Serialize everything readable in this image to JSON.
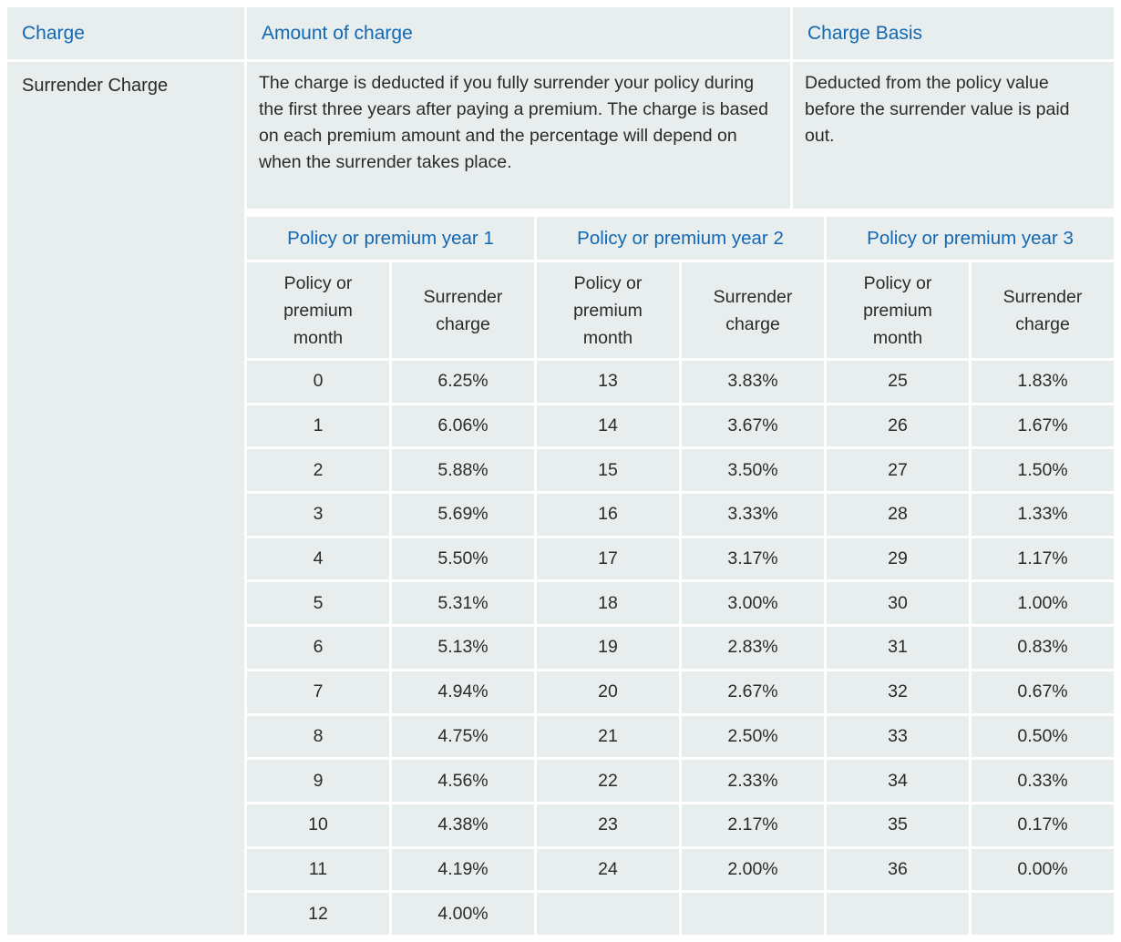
{
  "colors": {
    "accent_blue": "#1268b3",
    "cell_background": "#e8edee",
    "text": "#2b2b2b",
    "page_background": "#ffffff"
  },
  "table": {
    "column_headers": {
      "charge": "Charge",
      "amount": "Amount of charge",
      "basis": "Charge Basis"
    },
    "surrender_row": {
      "name": "Surrender Charge",
      "amount_description": "The charge is deducted if you fully surrender your policy during the first three years after paying a premium. The charge is based on each premium amount and the percentage will depend on when the surrender takes place.",
      "charge_basis": "Deducted from the policy value before the surrender value is paid out."
    },
    "schedule": {
      "year_headers": [
        "Policy or premium year 1",
        "Policy or premium year 2",
        "Policy or premium year 3"
      ],
      "column_headers": [
        "Policy or premium month",
        "Surrender charge",
        "Policy or premium month",
        "Surrender charge",
        "Policy or premium month",
        "Surrender charge"
      ],
      "rows": [
        [
          "0",
          "6.25%",
          "13",
          "3.83%",
          "25",
          "1.83%"
        ],
        [
          "1",
          "6.06%",
          "14",
          "3.67%",
          "26",
          "1.67%"
        ],
        [
          "2",
          "5.88%",
          "15",
          "3.50%",
          "27",
          "1.50%"
        ],
        [
          "3",
          "5.69%",
          "16",
          "3.33%",
          "28",
          "1.33%"
        ],
        [
          "4",
          "5.50%",
          "17",
          "3.17%",
          "29",
          "1.17%"
        ],
        [
          "5",
          "5.31%",
          "18",
          "3.00%",
          "30",
          "1.00%"
        ],
        [
          "6",
          "5.13%",
          "19",
          "2.83%",
          "31",
          "0.83%"
        ],
        [
          "7",
          "4.94%",
          "20",
          "2.67%",
          "32",
          "0.67%"
        ],
        [
          "8",
          "4.75%",
          "21",
          "2.50%",
          "33",
          "0.50%"
        ],
        [
          "9",
          "4.56%",
          "22",
          "2.33%",
          "34",
          "0.33%"
        ],
        [
          "10",
          "4.38%",
          "23",
          "2.17%",
          "35",
          "0.17%"
        ],
        [
          "11",
          "4.19%",
          "24",
          "2.00%",
          "36",
          "0.00%"
        ],
        [
          "12",
          "4.00%",
          "",
          "",
          "",
          ""
        ]
      ]
    }
  }
}
